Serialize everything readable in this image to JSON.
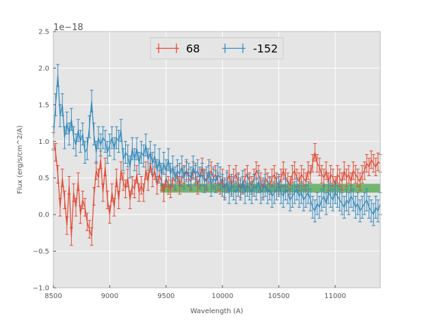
{
  "chart_data": {
    "type": "line",
    "xlabel": "Wavelength (A)",
    "ylabel": "Flux (erg/s/cm^2/A)",
    "offset_label": "1e−18",
    "xlim": [
      8500,
      11400
    ],
    "ylim": [
      -1.0,
      2.5
    ],
    "xticks": [
      8500,
      9000,
      9500,
      10000,
      10500,
      11000
    ],
    "xtick_labels": [
      "8500",
      "9000",
      "9500",
      "10000",
      "10500",
      "11000"
    ],
    "yticks": [
      -1.0,
      -0.5,
      0.0,
      0.5,
      1.0,
      1.5,
      2.0,
      2.5
    ],
    "ytick_labels": [
      "−1.0",
      "−0.5",
      "0.0",
      "0.5",
      "1.0",
      "1.5",
      "2.0",
      "2.5"
    ],
    "grid": true,
    "legend_position": "top-center",
    "colors": {
      "background": "#e5e5e5",
      "grid": "#ffffff",
      "band": "#4aa64a"
    },
    "band": {
      "x_range": [
        9450,
        11400
      ],
      "y_range": [
        0.3,
        0.42
      ]
    },
    "series": [
      {
        "name": "68",
        "color": "#e24a33",
        "x": [
          8500,
          8520,
          8540,
          8560,
          8580,
          8600,
          8620,
          8640,
          8660,
          8680,
          8700,
          8720,
          8740,
          8760,
          8780,
          8800,
          8820,
          8840,
          8860,
          8880,
          8900,
          8920,
          8940,
          8960,
          8980,
          9000,
          9020,
          9040,
          9060,
          9080,
          9100,
          9120,
          9140,
          9160,
          9180,
          9200,
          9220,
          9240,
          9260,
          9280,
          9300,
          9320,
          9340,
          9360,
          9380,
          9400,
          9420,
          9440,
          9460,
          9480,
          9500,
          9520,
          9540,
          9560,
          9580,
          9600,
          9620,
          9640,
          9660,
          9680,
          9700,
          9720,
          9740,
          9760,
          9780,
          9800,
          9820,
          9840,
          9860,
          9880,
          9900,
          9920,
          9940,
          9960,
          9980,
          10000,
          10020,
          10040,
          10060,
          10080,
          10100,
          10120,
          10140,
          10160,
          10180,
          10200,
          10220,
          10240,
          10260,
          10280,
          10300,
          10320,
          10340,
          10360,
          10380,
          10400,
          10420,
          10440,
          10460,
          10480,
          10500,
          10520,
          10540,
          10560,
          10580,
          10600,
          10620,
          10640,
          10660,
          10680,
          10700,
          10720,
          10740,
          10760,
          10780,
          10800,
          10820,
          10840,
          10860,
          10880,
          10900,
          10920,
          10940,
          10960,
          10980,
          11000,
          11020,
          11040,
          11060,
          11080,
          11100,
          11120,
          11140,
          11160,
          11180,
          11200,
          11220,
          11240,
          11260,
          11280,
          11300,
          11320,
          11340,
          11360,
          11380,
          11400
        ],
        "y": [
          1.0,
          0.85,
          0.55,
          0.1,
          0.5,
          0.2,
          -0.15,
          0.4,
          -0.3,
          0.3,
          0.1,
          0.45,
          0.0,
          0.2,
          0.1,
          -0.1,
          -0.2,
          -0.3,
          0.25,
          0.6,
          0.5,
          0.75,
          0.3,
          0.65,
          0.2,
          0.0,
          0.3,
          0.1,
          0.5,
          0.2,
          0.6,
          0.45,
          0.35,
          0.5,
          0.2,
          0.4,
          0.35,
          0.55,
          0.3,
          0.4,
          0.3,
          0.6,
          0.45,
          0.7,
          0.5,
          0.6,
          0.4,
          0.55,
          0.45,
          0.3,
          0.5,
          0.4,
          0.35,
          0.5,
          0.45,
          0.55,
          0.4,
          0.5,
          0.55,
          0.6,
          0.5,
          0.45,
          0.6,
          0.55,
          0.4,
          0.5,
          0.65,
          0.5,
          0.45,
          0.55,
          0.6,
          0.5,
          0.55,
          0.45,
          0.4,
          0.5,
          0.35,
          0.45,
          0.55,
          0.4,
          0.5,
          0.55,
          0.45,
          0.35,
          0.4,
          0.5,
          0.55,
          0.45,
          0.4,
          0.5,
          0.6,
          0.55,
          0.45,
          0.35,
          0.5,
          0.45,
          0.4,
          0.5,
          0.55,
          0.45,
          0.4,
          0.5,
          0.6,
          0.5,
          0.45,
          0.4,
          0.55,
          0.6,
          0.5,
          0.45,
          0.55,
          0.5,
          0.45,
          0.6,
          0.55,
          0.7,
          0.85,
          0.7,
          0.65,
          0.55,
          0.5,
          0.6,
          0.45,
          0.55,
          0.5,
          0.4,
          0.55,
          0.5,
          0.45,
          0.6,
          0.5,
          0.55,
          0.45,
          0.6,
          0.55,
          0.5,
          0.45,
          0.55,
          0.6,
          0.7,
          0.65,
          0.75,
          0.7,
          0.65,
          0.72,
          0.7
        ],
        "err": 0.12
      },
      {
        "name": "-152",
        "color": "#348abd",
        "x": [
          8500,
          8520,
          8540,
          8560,
          8580,
          8600,
          8620,
          8640,
          8660,
          8680,
          8700,
          8720,
          8740,
          8760,
          8780,
          8800,
          8820,
          8840,
          8860,
          8880,
          8900,
          8920,
          8940,
          8960,
          8980,
          9000,
          9020,
          9040,
          9060,
          9080,
          9100,
          9120,
          9140,
          9160,
          9180,
          9200,
          9220,
          9240,
          9260,
          9280,
          9300,
          9320,
          9340,
          9360,
          9380,
          9400,
          9420,
          9440,
          9460,
          9480,
          9500,
          9520,
          9540,
          9560,
          9580,
          9600,
          9620,
          9640,
          9660,
          9680,
          9700,
          9720,
          9740,
          9760,
          9780,
          9800,
          9820,
          9840,
          9860,
          9880,
          9900,
          9920,
          9940,
          9960,
          9980,
          10000,
          10020,
          10040,
          10060,
          10080,
          10100,
          10120,
          10140,
          10160,
          10180,
          10200,
          10220,
          10240,
          10260,
          10280,
          10300,
          10320,
          10340,
          10360,
          10380,
          10400,
          10420,
          10440,
          10460,
          10480,
          10500,
          10520,
          10540,
          10560,
          10580,
          10600,
          10620,
          10640,
          10660,
          10680,
          10700,
          10720,
          10740,
          10760,
          10780,
          10800,
          10820,
          10840,
          10860,
          10880,
          10900,
          10920,
          10940,
          10960,
          10980,
          11000,
          11020,
          11040,
          11060,
          11080,
          11100,
          11120,
          11140,
          11160,
          11180,
          11200,
          11220,
          11240,
          11260,
          11280,
          11300,
          11320,
          11340,
          11360,
          11380,
          11400
        ],
        "y": [
          1.05,
          1.5,
          1.9,
          1.35,
          1.5,
          1.05,
          1.25,
          1.1,
          1.3,
          1.05,
          0.95,
          1.15,
          1.0,
          1.1,
          0.85,
          0.9,
          1.2,
          1.55,
          1.1,
          0.85,
          1.05,
          0.95,
          1.05,
          1.0,
          0.85,
          0.95,
          1.05,
          0.9,
          1.05,
          1.0,
          1.15,
          0.75,
          0.85,
          0.8,
          0.65,
          0.9,
          0.75,
          0.9,
          0.7,
          0.85,
          0.8,
          0.95,
          0.75,
          0.85,
          0.7,
          0.8,
          0.6,
          0.75,
          0.55,
          0.7,
          0.6,
          0.75,
          0.55,
          0.65,
          0.5,
          0.6,
          0.55,
          0.65,
          0.5,
          0.6,
          0.55,
          0.5,
          0.65,
          0.55,
          0.6,
          0.5,
          0.55,
          0.45,
          0.5,
          0.6,
          0.4,
          0.5,
          0.45,
          0.55,
          0.5,
          0.4,
          0.35,
          0.45,
          0.3,
          0.4,
          0.35,
          0.3,
          0.4,
          0.35,
          0.45,
          0.3,
          0.4,
          0.35,
          0.3,
          0.4,
          0.35,
          0.45,
          0.3,
          0.35,
          0.4,
          0.3,
          0.35,
          0.25,
          0.3,
          0.35,
          0.4,
          0.3,
          0.25,
          0.35,
          0.3,
          0.2,
          0.25,
          0.3,
          0.35,
          0.25,
          0.3,
          0.2,
          0.25,
          0.3,
          0.2,
          0.1,
          0.05,
          0.15,
          0.1,
          0.2,
          0.25,
          0.15,
          0.3,
          0.25,
          0.2,
          0.3,
          0.25,
          0.2,
          0.15,
          0.1,
          0.2,
          0.15,
          0.25,
          0.2,
          0.1,
          0.15,
          0.05,
          0.1,
          0.15,
          0.2,
          0.1,
          0.05,
          0.0,
          0.1,
          0.05,
          0.15
        ],
        "err": 0.15
      }
    ]
  }
}
